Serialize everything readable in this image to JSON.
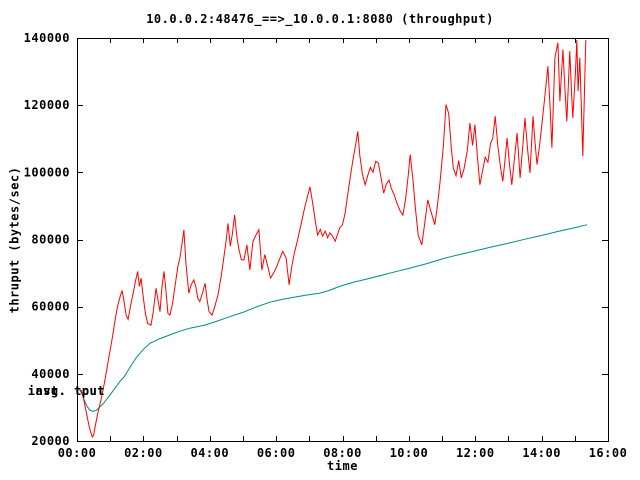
{
  "title": "10.0.0.2:48476_==>_10.0.0.1:8080 (throughput)",
  "labels": {
    "avg_line": "avg. tput",
    "inst_line": "inst. tput"
  },
  "colors": {
    "inst": "#ff0000",
    "avg": "#008b8b",
    "axis": "#000000",
    "background": "#ffffff",
    "text": "#000000"
  },
  "chart_data": {
    "type": "line",
    "title": "10.0.0.2:48476_==>_10.0.0.1:8080 (throughput)",
    "xlabel": "time",
    "ylabel": "thruput (bytes/sec)",
    "xlim": [
      0,
      16
    ],
    "ylim": [
      20000,
      140000
    ],
    "grid": false,
    "legend_position": "overlapping text labels at left edge near line start",
    "x_ticks_hours": [
      0,
      1,
      2,
      3,
      4,
      5,
      6,
      7,
      8,
      9,
      10,
      11,
      12,
      13,
      14,
      15,
      16
    ],
    "x_tick_labels": [
      "00:00",
      "02:00",
      "04:00",
      "06:00",
      "08:00",
      "10:00",
      "12:00",
      "14:00",
      "16:00"
    ],
    "x_tick_label_hours": [
      0,
      2,
      4,
      6,
      8,
      10,
      12,
      14,
      16
    ],
    "y_ticks": [
      20000,
      40000,
      60000,
      80000,
      100000,
      120000,
      140000
    ],
    "y_tick_labels": [
      "20000",
      "40000",
      "60000",
      "80000",
      "100000",
      "120000",
      "140000"
    ],
    "series": [
      {
        "name": "inst. tput",
        "color": "#ff0000",
        "points": [
          [
            0.08,
            35200
          ],
          [
            0.13,
            35000
          ],
          [
            0.18,
            33500
          ],
          [
            0.25,
            30000
          ],
          [
            0.33,
            26000
          ],
          [
            0.4,
            23000
          ],
          [
            0.46,
            21200
          ],
          [
            0.5,
            21800
          ],
          [
            0.55,
            24500
          ],
          [
            0.62,
            28000
          ],
          [
            0.68,
            30500
          ],
          [
            0.75,
            33500
          ],
          [
            0.82,
            37000
          ],
          [
            0.9,
            41500
          ],
          [
            0.98,
            46000
          ],
          [
            1.06,
            50500
          ],
          [
            1.14,
            55500
          ],
          [
            1.22,
            60000
          ],
          [
            1.3,
            63000
          ],
          [
            1.36,
            64800
          ],
          [
            1.42,
            61500
          ],
          [
            1.48,
            57500
          ],
          [
            1.54,
            56200
          ],
          [
            1.6,
            59500
          ],
          [
            1.68,
            63500
          ],
          [
            1.76,
            67500
          ],
          [
            1.83,
            70500
          ],
          [
            1.88,
            66000
          ],
          [
            1.93,
            68500
          ],
          [
            1.99,
            63500
          ],
          [
            2.06,
            58000
          ],
          [
            2.13,
            55000
          ],
          [
            2.23,
            54500
          ],
          [
            2.3,
            58500
          ],
          [
            2.38,
            65500
          ],
          [
            2.44,
            62000
          ],
          [
            2.5,
            58500
          ],
          [
            2.56,
            66000
          ],
          [
            2.62,
            70500
          ],
          [
            2.68,
            65000
          ],
          [
            2.74,
            58000
          ],
          [
            2.8,
            57500
          ],
          [
            2.88,
            61000
          ],
          [
            2.96,
            66500
          ],
          [
            3.04,
            72000
          ],
          [
            3.1,
            74500
          ],
          [
            3.16,
            78500
          ],
          [
            3.22,
            82900
          ],
          [
            3.28,
            73000
          ],
          [
            3.37,
            64000
          ],
          [
            3.44,
            66500
          ],
          [
            3.52,
            68000
          ],
          [
            3.58,
            66000
          ],
          [
            3.64,
            62500
          ],
          [
            3.7,
            61500
          ],
          [
            3.78,
            64000
          ],
          [
            3.86,
            67000
          ],
          [
            3.92,
            62000
          ],
          [
            3.98,
            58500
          ],
          [
            4.07,
            57500
          ],
          [
            4.15,
            60000
          ],
          [
            4.25,
            63500
          ],
          [
            4.35,
            69500
          ],
          [
            4.43,
            75000
          ],
          [
            4.5,
            80000
          ],
          [
            4.55,
            84800
          ],
          [
            4.62,
            78000
          ],
          [
            4.68,
            81500
          ],
          [
            4.75,
            87300
          ],
          [
            4.82,
            80500
          ],
          [
            4.88,
            77000
          ],
          [
            4.95,
            74000
          ],
          [
            5.03,
            73900
          ],
          [
            5.12,
            78400
          ],
          [
            5.21,
            70900
          ],
          [
            5.3,
            79400
          ],
          [
            5.4,
            81500
          ],
          [
            5.48,
            82900
          ],
          [
            5.57,
            70900
          ],
          [
            5.66,
            75500
          ],
          [
            5.75,
            72000
          ],
          [
            5.83,
            68500
          ],
          [
            5.92,
            70000
          ],
          [
            6.0,
            71500
          ],
          [
            6.1,
            74000
          ],
          [
            6.2,
            76500
          ],
          [
            6.3,
            74500
          ],
          [
            6.39,
            66500
          ],
          [
            6.48,
            72500
          ],
          [
            6.55,
            76000
          ],
          [
            6.65,
            80000
          ],
          [
            6.75,
            84500
          ],
          [
            6.85,
            89000
          ],
          [
            6.95,
            93000
          ],
          [
            7.02,
            95700
          ],
          [
            7.1,
            91000
          ],
          [
            7.18,
            85500
          ],
          [
            7.25,
            81300
          ],
          [
            7.33,
            83000
          ],
          [
            7.4,
            81000
          ],
          [
            7.48,
            82500
          ],
          [
            7.55,
            80500
          ],
          [
            7.62,
            82000
          ],
          [
            7.7,
            81000
          ],
          [
            7.78,
            79500
          ],
          [
            7.85,
            81500
          ],
          [
            7.92,
            83500
          ],
          [
            8.0,
            84400
          ],
          [
            8.08,
            88000
          ],
          [
            8.16,
            93500
          ],
          [
            8.24,
            99000
          ],
          [
            8.32,
            104000
          ],
          [
            8.4,
            108500
          ],
          [
            8.46,
            112200
          ],
          [
            8.52,
            105000
          ],
          [
            8.6,
            99500
          ],
          [
            8.68,
            96300
          ],
          [
            8.76,
            99000
          ],
          [
            8.84,
            101500
          ],
          [
            8.92,
            100000
          ],
          [
            9.0,
            103300
          ],
          [
            9.08,
            102800
          ],
          [
            9.16,
            98500
          ],
          [
            9.24,
            93800
          ],
          [
            9.32,
            96500
          ],
          [
            9.4,
            97700
          ],
          [
            9.48,
            95000
          ],
          [
            9.56,
            93200
          ],
          [
            9.65,
            90500
          ],
          [
            9.74,
            88500
          ],
          [
            9.82,
            87300
          ],
          [
            9.9,
            92000
          ],
          [
            9.98,
            99000
          ],
          [
            10.04,
            105300
          ],
          [
            10.12,
            98000
          ],
          [
            10.2,
            89000
          ],
          [
            10.28,
            81300
          ],
          [
            10.39,
            78400
          ],
          [
            10.48,
            85000
          ],
          [
            10.57,
            91800
          ],
          [
            10.66,
            88500
          ],
          [
            10.78,
            84400
          ],
          [
            10.86,
            90000
          ],
          [
            10.94,
            97300
          ],
          [
            11.04,
            108000
          ],
          [
            11.12,
            120200
          ],
          [
            11.2,
            117500
          ],
          [
            11.28,
            107000
          ],
          [
            11.34,
            101300
          ],
          [
            11.42,
            99000
          ],
          [
            11.5,
            103500
          ],
          [
            11.58,
            98300
          ],
          [
            11.66,
            101000
          ],
          [
            11.76,
            106500
          ],
          [
            11.84,
            114700
          ],
          [
            11.92,
            108000
          ],
          [
            11.99,
            114200
          ],
          [
            12.07,
            104000
          ],
          [
            12.14,
            96300
          ],
          [
            12.22,
            100500
          ],
          [
            12.3,
            104500
          ],
          [
            12.38,
            103000
          ],
          [
            12.46,
            108500
          ],
          [
            12.53,
            110200
          ],
          [
            12.6,
            116700
          ],
          [
            12.68,
            108000
          ],
          [
            12.76,
            101500
          ],
          [
            12.83,
            97300
          ],
          [
            12.9,
            104000
          ],
          [
            12.96,
            110200
          ],
          [
            13.04,
            101500
          ],
          [
            13.1,
            96300
          ],
          [
            13.18,
            104000
          ],
          [
            13.26,
            111700
          ],
          [
            13.35,
            98300
          ],
          [
            13.43,
            107500
          ],
          [
            13.5,
            116200
          ],
          [
            13.58,
            106500
          ],
          [
            13.65,
            99800
          ],
          [
            13.74,
            116700
          ],
          [
            13.8,
            109000
          ],
          [
            13.86,
            102300
          ],
          [
            13.94,
            108000
          ],
          [
            14.02,
            115500
          ],
          [
            14.1,
            122700
          ],
          [
            14.19,
            131600
          ],
          [
            14.26,
            118000
          ],
          [
            14.31,
            107300
          ],
          [
            14.4,
            134100
          ],
          [
            14.49,
            138600
          ],
          [
            14.55,
            121200
          ],
          [
            14.64,
            136600
          ],
          [
            14.7,
            125000
          ],
          [
            14.76,
            115200
          ],
          [
            14.85,
            136100
          ],
          [
            14.9,
            124000
          ],
          [
            14.94,
            116200
          ],
          [
            15.02,
            130000
          ],
          [
            15.06,
            139400
          ],
          [
            15.1,
            124200
          ],
          [
            15.15,
            134100
          ],
          [
            15.2,
            118000
          ],
          [
            15.24,
            104800
          ],
          [
            15.33,
            139400
          ]
        ]
      },
      {
        "name": "avg. tput",
        "color": "#008b8b",
        "points": [
          [
            0.08,
            35200
          ],
          [
            0.15,
            34000
          ],
          [
            0.22,
            32200
          ],
          [
            0.3,
            30300
          ],
          [
            0.4,
            29100
          ],
          [
            0.48,
            28800
          ],
          [
            0.58,
            29100
          ],
          [
            0.7,
            30200
          ],
          [
            0.8,
            31200
          ],
          [
            0.9,
            32500
          ],
          [
            1.0,
            33800
          ],
          [
            1.15,
            35800
          ],
          [
            1.3,
            37800
          ],
          [
            1.42,
            39100
          ],
          [
            1.6,
            42000
          ],
          [
            1.8,
            45000
          ],
          [
            2.0,
            47300
          ],
          [
            2.2,
            49100
          ],
          [
            2.5,
            50500
          ],
          [
            2.8,
            51600
          ],
          [
            3.1,
            52700
          ],
          [
            3.4,
            53600
          ],
          [
            3.85,
            54500
          ],
          [
            4.2,
            55600
          ],
          [
            4.6,
            57000
          ],
          [
            5.0,
            58300
          ],
          [
            5.4,
            59900
          ],
          [
            5.8,
            61300
          ],
          [
            6.2,
            62200
          ],
          [
            6.6,
            62900
          ],
          [
            7.0,
            63600
          ],
          [
            7.3,
            64000
          ],
          [
            7.6,
            64800
          ],
          [
            7.9,
            66000
          ],
          [
            8.3,
            67200
          ],
          [
            8.8,
            68400
          ],
          [
            9.2,
            69400
          ],
          [
            9.6,
            70400
          ],
          [
            10.0,
            71400
          ],
          [
            10.5,
            72700
          ],
          [
            11.0,
            74200
          ],
          [
            11.3,
            75000
          ],
          [
            11.7,
            75900
          ],
          [
            12.0,
            76600
          ],
          [
            12.5,
            77800
          ],
          [
            13.0,
            78900
          ],
          [
            13.5,
            80100
          ],
          [
            14.0,
            81200
          ],
          [
            14.5,
            82400
          ],
          [
            15.0,
            83500
          ],
          [
            15.37,
            84400
          ]
        ]
      }
    ]
  }
}
